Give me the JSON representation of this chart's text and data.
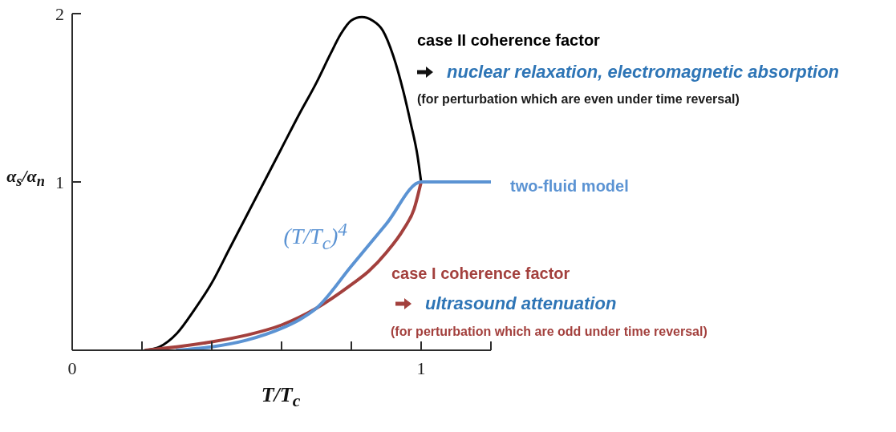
{
  "chart_data": {
    "type": "line",
    "xlabel": "T/T$_{c}$",
    "ylabel": "α$_{s}$/α$_{n}$",
    "xlim": [
      0,
      1.2
    ],
    "ylim": [
      0,
      2
    ],
    "xticks": [
      0,
      {
        "value": 0.2,
        "label": null
      },
      {
        "value": 0.4,
        "label": null
      },
      {
        "value": 0.6,
        "label": null
      },
      {
        "value": 0.8,
        "label": null
      },
      1,
      {
        "value": 1.2,
        "label": null
      }
    ],
    "yticks": [
      1,
      2
    ],
    "series": [
      {
        "name": "case II coherence factor",
        "color": "#000000",
        "x": [
          0.21,
          0.25,
          0.3,
          0.35,
          0.4,
          0.45,
          0.5,
          0.55,
          0.6,
          0.65,
          0.7,
          0.74,
          0.77,
          0.8,
          0.83,
          0.86,
          0.89,
          0.92,
          0.95,
          0.97,
          0.99,
          1.0
        ],
        "values": [
          0,
          0.02,
          0.1,
          0.24,
          0.4,
          0.6,
          0.8,
          1.0,
          1.2,
          1.4,
          1.59,
          1.76,
          1.88,
          1.96,
          1.98,
          1.96,
          1.9,
          1.75,
          1.53,
          1.35,
          1.15,
          1.0
        ]
      },
      {
        "name": "case I coherence factor",
        "color": "#a3403d",
        "x": [
          0.21,
          0.3,
          0.4,
          0.5,
          0.6,
          0.7,
          0.8,
          0.85,
          0.9,
          0.95,
          0.98,
          1.0
        ],
        "values": [
          0,
          0.02,
          0.05,
          0.09,
          0.15,
          0.25,
          0.39,
          0.47,
          0.58,
          0.72,
          0.84,
          1.0
        ]
      },
      {
        "name": "two-fluid model",
        "color": "#5b93d3",
        "x": [
          0.3,
          0.4,
          0.5,
          0.6,
          0.65,
          0.7,
          0.8,
          0.9,
          1.0,
          1.2
        ],
        "values": [
          0,
          0.02,
          0.06,
          0.13,
          0.18,
          0.25,
          0.5,
          0.75,
          1.0,
          1.0
        ]
      }
    ],
    "annotations": [
      "nuclear relaxation, electromagnetic absorption",
      "(for perturbation which are even under time reversal)",
      "ultrasound attenuation",
      "(for perturbation which are odd under time reversal)",
      {
        "text": "(T/T$_{c}$)$^{4}$",
        "x": 0.8,
        "y": 0.5
      }
    ]
  }
}
